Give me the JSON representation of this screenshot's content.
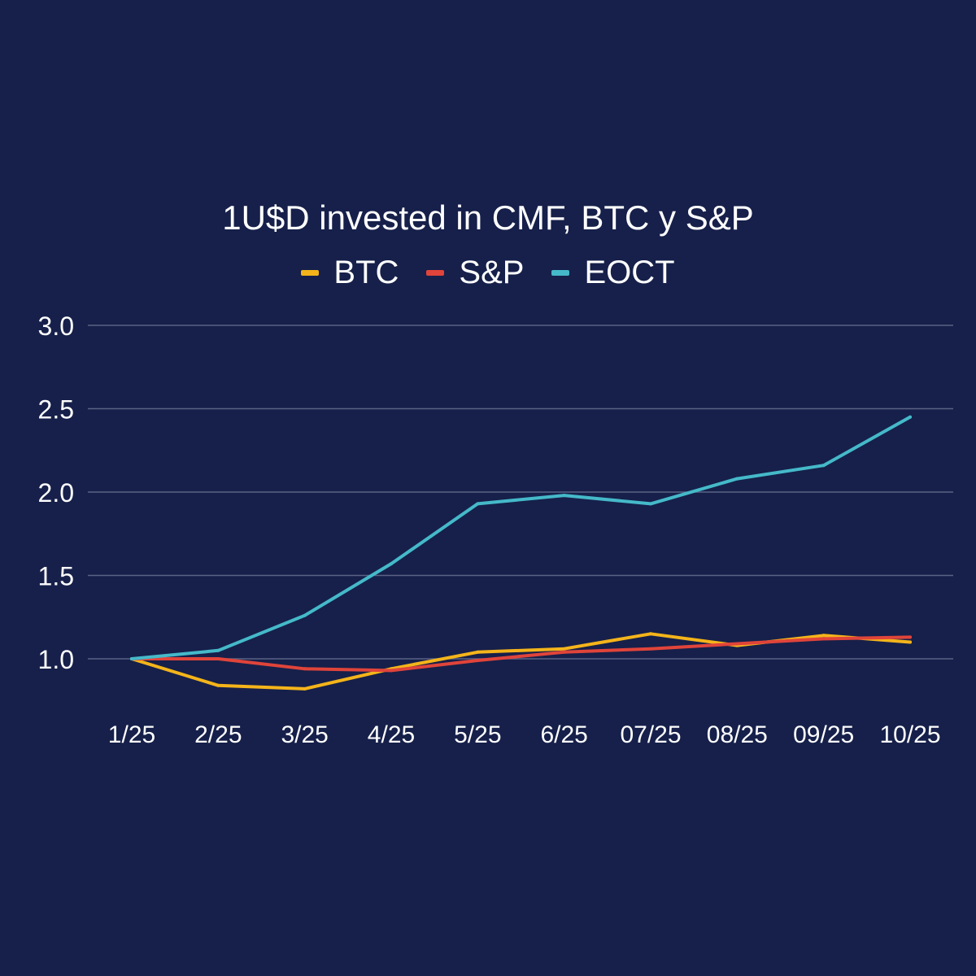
{
  "chart_data": {
    "type": "line",
    "title": "1U$D invested in CMF, BTC y S&P",
    "xlabel": "",
    "ylabel": "",
    "legend_position": "top-center",
    "grid": true,
    "categories": [
      "1/25",
      "2/25",
      "3/25",
      "4/25",
      "5/25",
      "6/25",
      "07/25",
      "08/25",
      "09/25",
      "10/25"
    ],
    "ylim": [
      0.6,
      3.0
    ],
    "yticks": [
      {
        "value": 1.0,
        "label": "1.0"
      },
      {
        "value": 1.5,
        "label": "1.5"
      },
      {
        "value": 2.0,
        "label": "2.0"
      },
      {
        "value": 2.5,
        "label": "2.5"
      },
      {
        "value": 3.0,
        "label": "3.0"
      }
    ],
    "series": [
      {
        "name": "BTC",
        "color": "#f4b41a",
        "values": [
          1.0,
          0.84,
          0.82,
          0.94,
          1.04,
          1.06,
          1.15,
          1.08,
          1.14,
          1.1
        ]
      },
      {
        "name": "S&P",
        "color": "#e0443a",
        "values": [
          1.0,
          1.0,
          0.94,
          0.93,
          0.99,
          1.04,
          1.06,
          1.09,
          1.12,
          1.13
        ]
      },
      {
        "name": "EOCT",
        "color": "#45b9c9",
        "values": [
          1.0,
          1.05,
          1.26,
          1.57,
          1.93,
          1.98,
          1.93,
          2.08,
          2.16,
          2.45
        ]
      }
    ]
  },
  "colors": {
    "background": "#16204a",
    "gridline": "#5a6384",
    "text": "#ffffff"
  }
}
